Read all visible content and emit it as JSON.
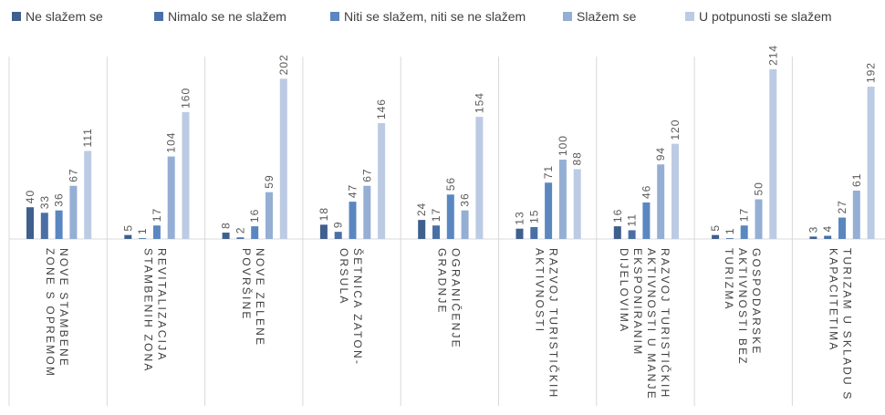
{
  "chart_data": {
    "type": "bar",
    "title": "",
    "xlabel": "",
    "ylabel": "",
    "ylim": [
      0,
      230
    ],
    "grid": false,
    "legend_position": "top",
    "categories": [
      [
        "NOVE STAMBENE",
        "ZONE S OPREMOM"
      ],
      [
        "REVITALIZACIJA",
        "STAMBENIH ZONA"
      ],
      [
        "NOVE ZELENE",
        "POVRŠINE"
      ],
      [
        "ŠETNICA ZATON-",
        "ORSULA"
      ],
      [
        "OGRANIČENJE",
        "GRADNJE"
      ],
      [
        "RAZVOJ TURISTIČKIH",
        "AKTIVNOSTI"
      ],
      [
        "RAZVOJ TURISTIČKIH",
        "AKTIVNOSTI U MANJE",
        "EKSPONIRANIM",
        "DIJELOVIMA"
      ],
      [
        "GOSPODARSKE",
        "AKTIVNOSTI BEZ",
        "TURIZMA"
      ],
      [
        "TURIZAM U SKLADU S",
        "KAPACITETIMA"
      ]
    ],
    "series": [
      {
        "name": "Ne slažem se",
        "color": "#3f5f8c",
        "values": [
          40,
          5,
          8,
          18,
          24,
          13,
          16,
          5,
          3
        ]
      },
      {
        "name": "Nimalo se ne slažem",
        "color": "#4a6fa5",
        "values": [
          33,
          1,
          2,
          9,
          17,
          15,
          11,
          1,
          4
        ]
      },
      {
        "name": "Niti se slažem, niti se ne slažem",
        "color": "#5b87c1",
        "values": [
          36,
          17,
          16,
          47,
          56,
          71,
          46,
          17,
          27
        ]
      },
      {
        "name": "Slažem se",
        "color": "#95aed4",
        "values": [
          67,
          104,
          59,
          67,
          36,
          100,
          94,
          50,
          61
        ]
      },
      {
        "name": "U potpunosti se slažem",
        "color": "#bccbe3",
        "values": [
          111,
          160,
          202,
          146,
          154,
          88,
          120,
          214,
          192
        ]
      }
    ]
  }
}
